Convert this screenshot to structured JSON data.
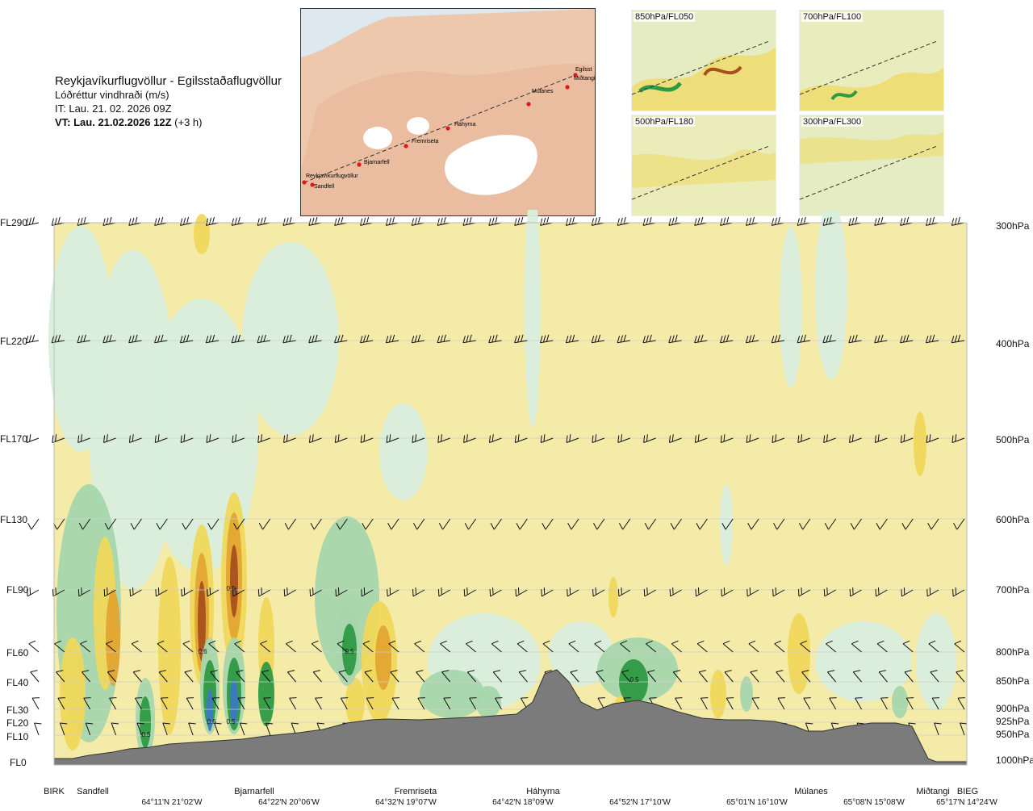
{
  "header": {
    "route": "Reykjavíkurflugvöllur - Egilsstaðaflugvöllur",
    "variable": "Lóðréttur vindhraði (m/s)",
    "issue_time": "IT: Lau. 21. 02. 2026 09Z",
    "valid_time_bold": "VT: Lau. 21.02.2026 12Z",
    "valid_time_offset": "(+3 h)"
  },
  "map": {
    "places": [
      "Reykjavíkurflugvöllur",
      "Sandfell",
      "Bjarnarfell",
      "Fremriseta",
      "Háhyrna",
      "Múlanes",
      "Miðtangi",
      "Egilsst"
    ]
  },
  "panels": [
    {
      "label": "850hPa/FL050"
    },
    {
      "label": "700hPa/FL100"
    },
    {
      "label": "500hPa/FL180"
    },
    {
      "label": "300hPa/FL300"
    }
  ],
  "chart_data": {
    "type": "heatmap",
    "y_levels": [
      {
        "fl": "FL290",
        "hpa": "300hPa"
      },
      {
        "fl": "FL220",
        "hpa": "400hPa"
      },
      {
        "fl": "FL170",
        "hpa": "500hPa"
      },
      {
        "fl": "FL130",
        "hpa": "600hPa"
      },
      {
        "fl": "FL90",
        "hpa": "700hPa"
      },
      {
        "fl": "FL60",
        "hpa": "800hPa"
      },
      {
        "fl": "FL40",
        "hpa": "850hPa"
      },
      {
        "fl": "FL30",
        "hpa": "900hPa"
      },
      {
        "fl": "FL20",
        "hpa": "925hPa"
      },
      {
        "fl": "FL10",
        "hpa": "950hPa"
      },
      {
        "fl": "FL0",
        "hpa": "1000hPa"
      }
    ],
    "locations": [
      "BIRK",
      "Sandfell",
      "Bjarnarfell",
      "Fremriseta",
      "Háhyrna",
      "Múlanes",
      "Miðtangi",
      "BIEG"
    ],
    "coordinates": [
      "64°11'N 21°02'W",
      "64°22'N 20°06'W",
      "64°32'N 19°07'W",
      "64°42'N 18°09'W",
      "64°52'N 17°10'W",
      "65°01'N 16°10'W",
      "65°08'N 15°08'W",
      "65°17'N 14°24'W"
    ],
    "contour_labels": [
      "0.5",
      "0.6",
      "0.5",
      "0.5",
      "0.6",
      "0.5",
      "0.5"
    ],
    "colors": {
      "neutral": "#f3eba7",
      "weak_down": "#d9eedd",
      "down": "#a7d6ac",
      "strong_down": "#2e9a44",
      "very_strong_down": "#3b78c3",
      "up": "#efd85a",
      "strong_up": "#e3a532",
      "very_strong_up": "#a8501d",
      "terrain": "#7b7b7b"
    }
  }
}
